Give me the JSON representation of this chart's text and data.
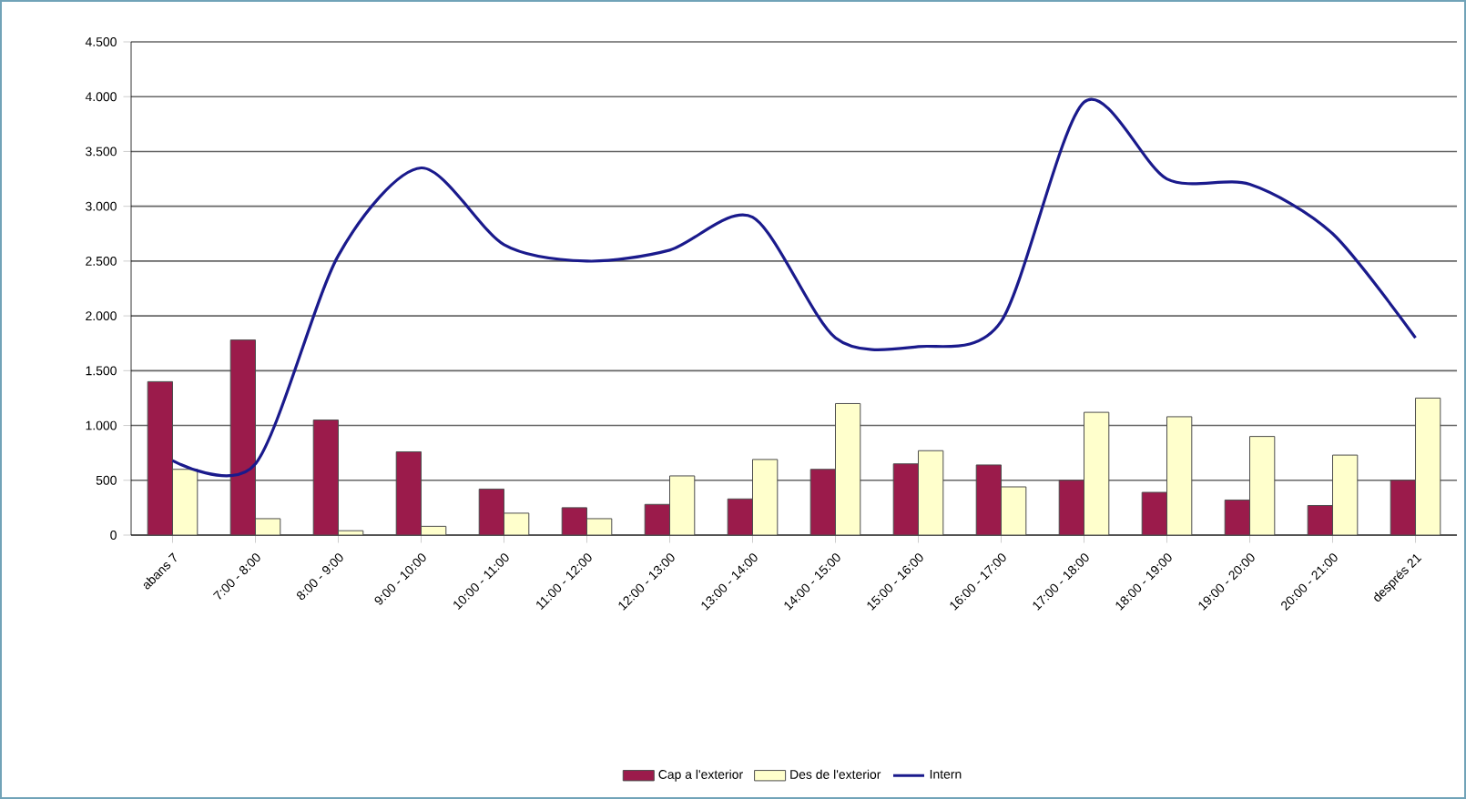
{
  "chart_data": {
    "type": "bar",
    "categories": [
      "abans 7",
      "7:00 - 8:00",
      "8:00 - 9:00",
      "9:00 - 10:00",
      "10:00 - 11:00",
      "11:00 - 12:00",
      "12:00 - 13:00",
      "13:00 - 14:00",
      "14:00 - 15:00",
      "15:00 - 16:00",
      "16:00 - 17:00",
      "17:00 - 18:00",
      "18:00 - 19:00",
      "19:00 - 20:00",
      "20:00 - 21:00",
      "després 21"
    ],
    "series": [
      {
        "name": "Cap a l'exterior",
        "color": "#9b1b4b",
        "values": [
          1400,
          1780,
          1050,
          760,
          420,
          250,
          280,
          330,
          600,
          650,
          640,
          500,
          390,
          320,
          270,
          500
        ]
      },
      {
        "name": "Des de l'exterior",
        "color": "#ffffcc",
        "values": [
          600,
          150,
          40,
          80,
          200,
          150,
          540,
          690,
          1200,
          770,
          440,
          1120,
          1080,
          900,
          730,
          1250
        ]
      },
      {
        "name": "Intern",
        "type": "line",
        "color": "#1a1a8c",
        "values": [
          680,
          650,
          2550,
          3350,
          2650,
          2500,
          2600,
          2900,
          1800,
          1720,
          1950,
          3950,
          3250,
          3200,
          2750,
          1800
        ]
      }
    ],
    "ylim": [
      0,
      4500
    ],
    "yticks": [
      0,
      {
        "value": 500,
        "label": "500"
      },
      {
        "value": 1000,
        "label": "1.000"
      },
      {
        "value": 1500,
        "label": "1.500"
      },
      {
        "value": 2000,
        "label": "2.000"
      },
      {
        "value": 2500,
        "label": "2.500"
      },
      {
        "value": 3000,
        "label": "3.000"
      },
      {
        "value": 3500,
        "label": "3.500"
      },
      {
        "value": 4000,
        "label": "4.000"
      },
      {
        "value": 4500,
        "label": "4.500"
      }
    ],
    "grid": "y",
    "legend": "bottom"
  }
}
